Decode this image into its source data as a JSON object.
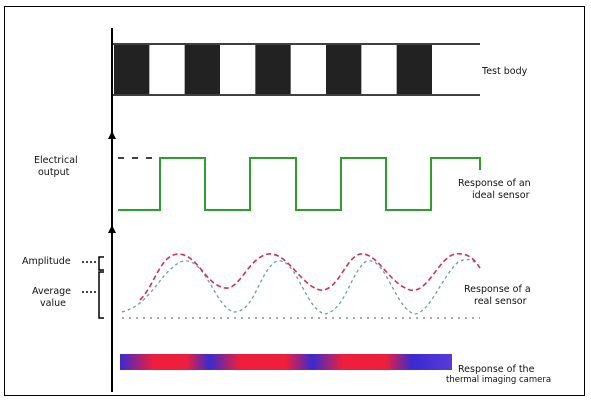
{
  "labels": {
    "test_body": "Test body",
    "electrical_output_line1": "Electrical",
    "electrical_output_line2": "output",
    "ideal_sensor_line1": "Response of an",
    "ideal_sensor_line2": "ideal sensor",
    "amplitude": "Amplitude",
    "average_value_line1": "Average",
    "average_value_line2": "value",
    "real_sensor_line1": "Response of a",
    "real_sensor_line2": "real sensor",
    "color_scale_line1": "Response of the",
    "color_scale_line2": "thermal imaging camera"
  },
  "colors": {
    "test_body_dark": "#222222",
    "ideal_signal": "#2e9e2e",
    "real_signal": "#cc3355",
    "real_signal_secondary": "#6aa0a0",
    "gradient_blue": "#3a2ad0",
    "gradient_red": "#ee1e3c",
    "axis": "#000000"
  },
  "test_body_pattern": [
    "dark",
    "light",
    "dark",
    "light",
    "dark",
    "light",
    "dark",
    "light",
    "dark"
  ]
}
